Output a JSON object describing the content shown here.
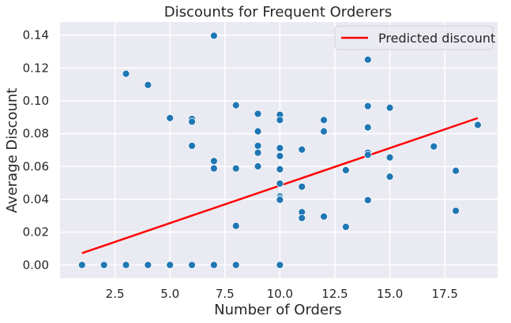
{
  "chart_data": {
    "type": "scatter",
    "title": "Discounts for Frequent Orderers",
    "xlabel": "Number of Orders",
    "ylabel": "Average Discount",
    "xlim": [
      0.0,
      19.9
    ],
    "ylim": [
      -0.008,
      0.148
    ],
    "xticks": [
      "2.5",
      "5.0",
      "7.5",
      "10.0",
      "12.5",
      "15.0",
      "17.5"
    ],
    "yticks": [
      "0.00",
      "0.02",
      "0.04",
      "0.06",
      "0.08",
      "0.10",
      "0.12",
      "0.14"
    ],
    "grid": true,
    "legend_position": "top-right",
    "colors": {
      "points": "#1f77b4",
      "line": "#ff0000",
      "plot_bg": "#eaeaf2",
      "grid": "#ffffff"
    },
    "points": {
      "x": [
        1,
        2,
        3,
        4,
        5,
        6,
        7,
        8,
        10,
        3,
        4,
        5,
        6,
        6,
        6,
        7,
        7,
        7,
        8,
        8,
        8,
        9,
        9,
        9,
        9,
        9,
        9,
        10,
        10,
        10,
        10,
        10,
        10,
        10,
        10,
        10,
        11,
        11,
        11,
        11,
        12,
        12,
        12,
        13,
        13,
        14,
        14,
        14,
        14,
        14,
        14,
        14,
        15,
        15,
        15,
        17,
        18,
        18,
        19
      ],
      "y": [
        0.0,
        0.0,
        0.0,
        0.0,
        0.0,
        0.0,
        0.0,
        0.0,
        0.0,
        0.1165,
        0.1097,
        0.0895,
        0.089,
        0.0873,
        0.0726,
        0.1397,
        0.0633,
        0.0588,
        0.0973,
        0.0588,
        0.0238,
        0.0921,
        0.0814,
        0.0726,
        0.0684,
        0.0605,
        0.0601,
        0.0915,
        0.0883,
        0.0712,
        0.0664,
        0.0583,
        0.0496,
        0.0418,
        0.0405,
        0.0397,
        0.0703,
        0.0477,
        0.0322,
        0.0286,
        0.0883,
        0.0814,
        0.0295,
        0.0578,
        0.0232,
        0.1251,
        0.0968,
        0.0838,
        0.0684,
        0.0671,
        0.0394,
        0.0395,
        0.0958,
        0.0655,
        0.0538,
        0.0722,
        0.0574,
        0.033,
        0.0853
      ]
    },
    "regression_line": {
      "name": "Predicted discount",
      "x": [
        1,
        19
      ],
      "y": [
        0.0072,
        0.0895
      ]
    }
  }
}
